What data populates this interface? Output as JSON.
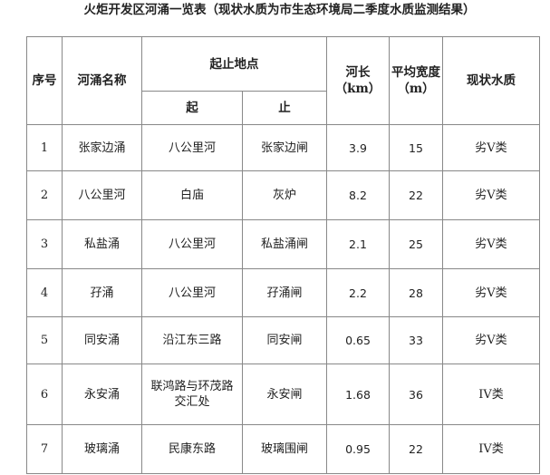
{
  "title": "火炬开发区河涌一览表（现状水质为市生态环境局二季度水质监测结果）",
  "headers": {
    "seq": "序号",
    "name": "河涌名称",
    "location": "起止地点",
    "start": "起",
    "end": "止",
    "length": "河长（km）",
    "width": "平均宽度（m）",
    "quality": "现状水质"
  },
  "rows": [
    {
      "seq": "1",
      "name": "张家边涌",
      "start": "八公里河",
      "end": "张家边闸",
      "length": "3.9",
      "width": "15",
      "quality": "劣V类"
    },
    {
      "seq": "2",
      "name": "八公里河",
      "start": "白庙",
      "end": "灰炉",
      "length": "8.2",
      "width": "22",
      "quality": "劣V类"
    },
    {
      "seq": "3",
      "name": "私盐涌",
      "start": "八公里河",
      "end": "私盐涌闸",
      "length": "2.1",
      "width": "25",
      "quality": "劣V类"
    },
    {
      "seq": "4",
      "name": "孖涌",
      "start": "八公里河",
      "end": "孖涌闸",
      "length": "2.2",
      "width": "28",
      "quality": "劣V类"
    },
    {
      "seq": "5",
      "name": "同安涌",
      "start": "沿江东三路",
      "end": "同安闸",
      "length": "0.65",
      "width": "33",
      "quality": "劣V类"
    },
    {
      "seq": "6",
      "name": "永安涌",
      "start": "联鸿路与环茂路交汇处",
      "end": "永安闸",
      "length": "1.68",
      "width": "36",
      "quality": "IV类"
    },
    {
      "seq": "7",
      "name": "玻璃涌",
      "start": "民康东路",
      "end": "玻璃围闸",
      "length": "0.95",
      "width": "22",
      "quality": "IV类"
    }
  ]
}
